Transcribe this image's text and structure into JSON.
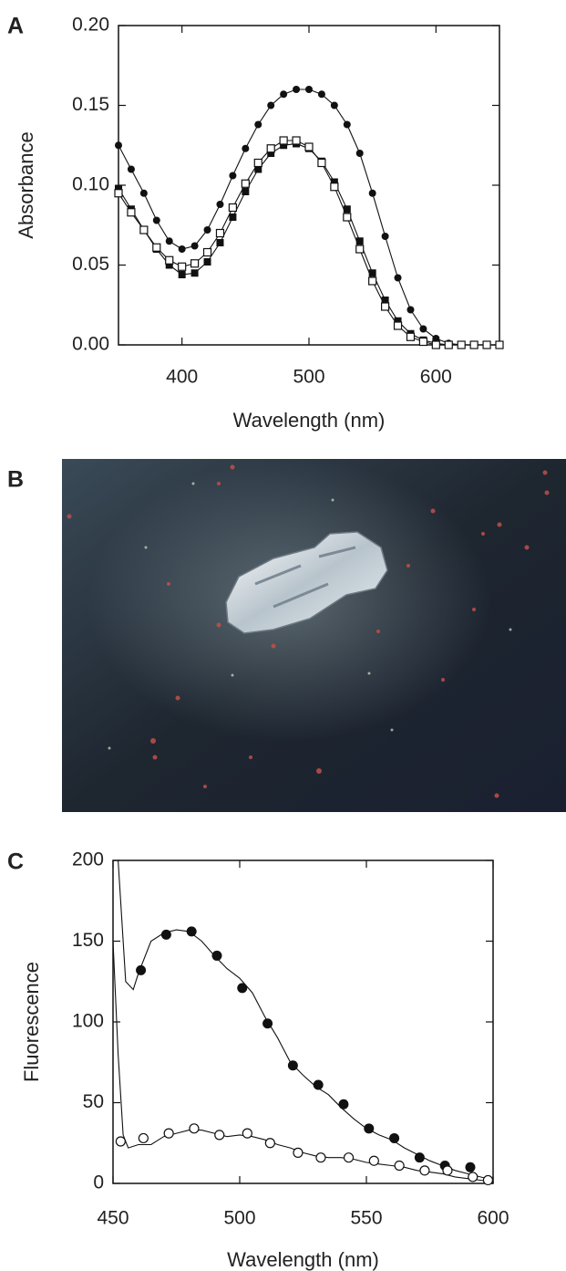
{
  "panel_labels": [
    "A",
    "B",
    "C"
  ],
  "chart_data": [
    {
      "type": "line",
      "x_label": "Wavelength (nm)",
      "y_label": "Absorbance",
      "xlim": [
        350,
        650
      ],
      "xticks": [
        400,
        500,
        600
      ],
      "ylim": [
        0,
        0.2
      ],
      "yticks": [
        {
          "value": 0,
          "label": "0.00"
        },
        {
          "value": 0.05,
          "label": "0.05"
        },
        {
          "value": 0.1,
          "label": "0.10"
        },
        {
          "value": 0.15,
          "label": "0.15"
        },
        {
          "value": 0.2,
          "label": "0.20"
        }
      ],
      "series": [
        {
          "color": "#111111",
          "marker": "filled-circle",
          "line": true,
          "x": [
            350,
            360,
            370,
            380,
            390,
            400,
            410,
            420,
            430,
            440,
            450,
            460,
            470,
            480,
            490,
            500,
            510,
            520,
            530,
            540,
            550,
            560,
            570,
            580,
            590,
            600,
            610,
            620,
            630,
            640,
            650
          ],
          "values": [
            0.125,
            0.11,
            0.095,
            0.078,
            0.065,
            0.06,
            0.062,
            0.072,
            0.088,
            0.106,
            0.123,
            0.138,
            0.15,
            0.157,
            0.16,
            0.16,
            0.157,
            0.15,
            0.138,
            0.12,
            0.095,
            0.068,
            0.042,
            0.022,
            0.01,
            0.004,
            0.001,
            0,
            0,
            0,
            0
          ]
        },
        {
          "color": "#111111",
          "marker": "filled-square",
          "line": true,
          "x": [
            350,
            360,
            370,
            380,
            390,
            400,
            410,
            420,
            430,
            440,
            450,
            460,
            470,
            480,
            490,
            500,
            510,
            520,
            530,
            540,
            550,
            560,
            570,
            580,
            590,
            600,
            610,
            620,
            630,
            640,
            650
          ],
          "values": [
            0.098,
            0.085,
            0.072,
            0.06,
            0.05,
            0.044,
            0.045,
            0.052,
            0.064,
            0.08,
            0.096,
            0.11,
            0.12,
            0.125,
            0.126,
            0.123,
            0.115,
            0.102,
            0.085,
            0.065,
            0.045,
            0.028,
            0.015,
            0.007,
            0.003,
            0.001,
            0,
            0,
            0,
            0,
            0
          ]
        },
        {
          "color": "#111111",
          "marker": "open-square",
          "line": true,
          "x": [
            350,
            360,
            370,
            380,
            390,
            400,
            410,
            420,
            430,
            440,
            450,
            460,
            470,
            480,
            490,
            500,
            510,
            520,
            530,
            540,
            550,
            560,
            570,
            580,
            590,
            600,
            610,
            620,
            630,
            640,
            650
          ],
          "values": [
            0.095,
            0.083,
            0.072,
            0.061,
            0.053,
            0.049,
            0.051,
            0.058,
            0.07,
            0.086,
            0.101,
            0.114,
            0.123,
            0.128,
            0.128,
            0.124,
            0.114,
            0.099,
            0.08,
            0.06,
            0.04,
            0.024,
            0.012,
            0.005,
            0.002,
            0,
            0,
            0,
            0,
            0,
            0
          ]
        }
      ]
    },
    {
      "type": "line",
      "x_label": "Wavelength (nm)",
      "y_label": "Fluorescence",
      "xlim": [
        450,
        600
      ],
      "xticks": [
        450,
        500,
        550,
        600
      ],
      "ylim": [
        0,
        200
      ],
      "yticks": [
        0,
        50,
        100,
        150,
        200
      ],
      "series": [
        {
          "color": "#111111",
          "line": true,
          "x": [
            452,
            455,
            458,
            460,
            465,
            470,
            475,
            480,
            485,
            490,
            495,
            500,
            505,
            510,
            515,
            520,
            525,
            530,
            535,
            540,
            545,
            550,
            555,
            560,
            565,
            570,
            575,
            580,
            585,
            590,
            595,
            600
          ],
          "values": [
            200,
            125,
            120,
            130,
            150,
            155,
            157,
            156,
            150,
            141,
            133,
            127,
            118,
            103,
            90,
            75,
            67,
            60,
            55,
            47,
            40,
            34,
            30,
            27,
            22,
            18,
            14,
            11,
            8,
            6,
            4,
            2
          ]
        },
        {
          "color": "#111111",
          "marker": "filled-circle-large",
          "line": false,
          "x": [
            461,
            471,
            481,
            491,
            501,
            511,
            521,
            531,
            541,
            551,
            561,
            571,
            581,
            591
          ],
          "values": [
            132,
            154,
            156,
            141,
            121,
            99,
            73,
            61,
            49,
            34,
            28,
            16,
            11,
            10
          ]
        },
        {
          "color": "#111111",
          "line": true,
          "x": [
            450,
            452,
            454,
            456,
            460,
            465,
            470,
            475,
            480,
            485,
            490,
            495,
            500,
            505,
            510,
            515,
            520,
            525,
            530,
            535,
            540,
            545,
            550,
            555,
            560,
            565,
            570,
            575,
            580,
            585,
            590,
            595,
            600
          ],
          "values": [
            150,
            80,
            30,
            22,
            24,
            24,
            29,
            31,
            33,
            33,
            31,
            29,
            30,
            29,
            27,
            24,
            22,
            19,
            17,
            16,
            16,
            15,
            13,
            12,
            11,
            10,
            8,
            7,
            6,
            4,
            3,
            2,
            1
          ]
        },
        {
          "color": "#111111",
          "marker": "open-circle",
          "line": false,
          "x": [
            453,
            462,
            472,
            482,
            492,
            503,
            512,
            523,
            532,
            543,
            553,
            563,
            573,
            582,
            592,
            598
          ],
          "values": [
            26,
            28,
            31,
            34,
            30,
            31,
            25,
            19,
            16,
            16,
            14,
            11,
            8,
            8,
            4,
            2
          ]
        }
      ]
    }
  ]
}
